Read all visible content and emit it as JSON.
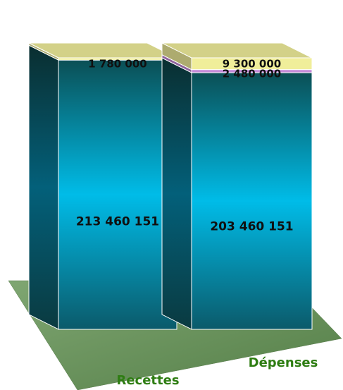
{
  "chart_data": {
    "type": "bar",
    "stacked": true,
    "style": "3d",
    "categories": [
      "Recettes",
      "Dépenses"
    ],
    "series": [
      {
        "values": [
          213460151,
          203460151
        ],
        "labels": [
          "213 460 151",
          "203 460 151"
        ],
        "color": "#00b4e0"
      },
      {
        "values": [
          0,
          2480000
        ],
        "labels": [
          "",
          "2 480 000"
        ],
        "color": "#c58ad8"
      },
      {
        "values": [
          1780000,
          9300000
        ],
        "labels": [
          "1 780 000",
          "9 300 000"
        ],
        "color": "#f0ee9a"
      }
    ],
    "colors": {
      "floor": "#6e9a5e",
      "category_label": "#2e7d12",
      "value_label": "#101010"
    }
  }
}
